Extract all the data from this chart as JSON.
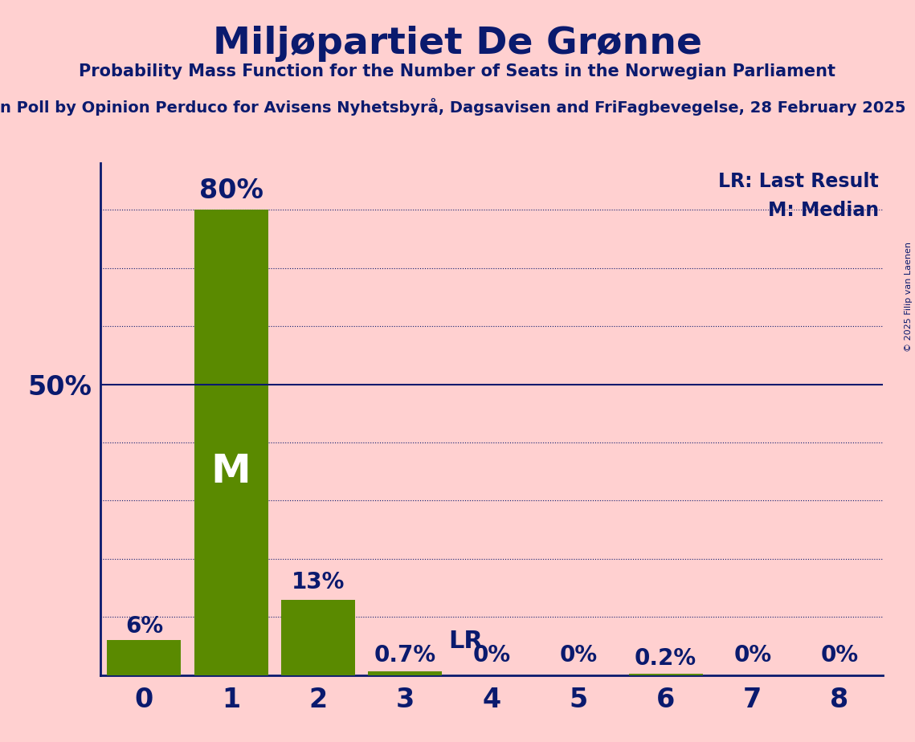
{
  "title": "Miljøpartiet De Grønne",
  "subtitle": "Probability Mass Function for the Number of Seats in the Norwegian Parliament",
  "subsubtitle": "n Poll by Opinion Perduco for Avisens Nyhetsbyrå, Dagsavisen and FriFagbevegelse, 28 February 2025",
  "copyright": "© 2025 Filip van Laenen",
  "categories": [
    0,
    1,
    2,
    3,
    4,
    5,
    6,
    7,
    8
  ],
  "values": [
    0.06,
    0.8,
    0.13,
    0.007,
    0.0,
    0.0,
    0.002,
    0.0,
    0.0
  ],
  "bar_color": "#5a8a00",
  "background_color": "#FFD0D0",
  "title_color": "#0a1a6e",
  "text_color": "#0a1a6e",
  "median_bar": 1,
  "lr_bar": 3,
  "hline_50_color": "#0a1a6e",
  "grid_color": "#0a1a6e",
  "ylim": [
    0,
    0.88
  ],
  "yticks": [
    0.0,
    0.1,
    0.2,
    0.3,
    0.4,
    0.5,
    0.6,
    0.7,
    0.8
  ],
  "bar_labels": [
    "6%",
    "80%",
    "13%",
    "0.7%",
    "0%",
    "0%",
    "0.2%",
    "0%",
    "0%"
  ]
}
